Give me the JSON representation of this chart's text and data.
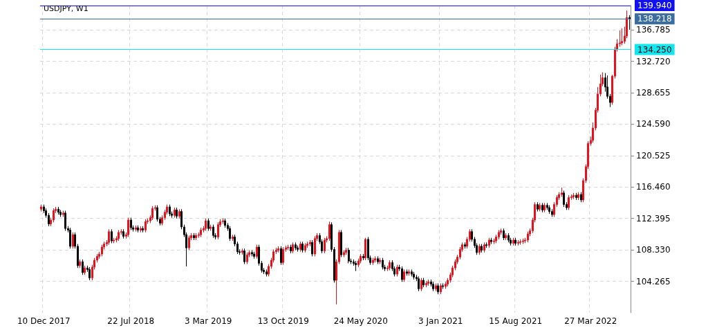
{
  "chart_data": {
    "type": "candlestick",
    "title": "USDJPY, W1",
    "categories": [
      null,
      "10 Dec 2017",
      null,
      null,
      null,
      null,
      null,
      null,
      null,
      null,
      null,
      null,
      null,
      null,
      null,
      null,
      null,
      null,
      null,
      null,
      null,
      null,
      null,
      null,
      null,
      null,
      null,
      null,
      null,
      null,
      null,
      null,
      null,
      null,
      null,
      null,
      null,
      "22 Jul 2018",
      null,
      null,
      null,
      null,
      null,
      null,
      null,
      null,
      null,
      null,
      null,
      null,
      null,
      null,
      null,
      null,
      null,
      null,
      null,
      null,
      null,
      null,
      null,
      null,
      null,
      null,
      null,
      null,
      null,
      null,
      null,
      "3 Mar 2019",
      null,
      null,
      null,
      null,
      null,
      null,
      null,
      null,
      null,
      null,
      null,
      null,
      null,
      null,
      null,
      null,
      null,
      null,
      null,
      null,
      null,
      null,
      null,
      null,
      null,
      null,
      null,
      null,
      null,
      null,
      "13 Oct 2019",
      null,
      null,
      null,
      null,
      null,
      null,
      null,
      null,
      null,
      null,
      null,
      null,
      null,
      null,
      null,
      null,
      null,
      null,
      null,
      null,
      null,
      null,
      null,
      null,
      null,
      null,
      null,
      null,
      null,
      null,
      null,
      "24 May 2020",
      null,
      null,
      null,
      null,
      null,
      null,
      null,
      null,
      null,
      null,
      null,
      null,
      null,
      null,
      null,
      null,
      null,
      null,
      null,
      null,
      null,
      null,
      null,
      null,
      null,
      null,
      null,
      null,
      null,
      null,
      null,
      null,
      "3 Jan 2021",
      null,
      null,
      null,
      null,
      null,
      null,
      null,
      null,
      null,
      null,
      null,
      null,
      null,
      null,
      null,
      null,
      null,
      null,
      null,
      null,
      null,
      null,
      null,
      null,
      null,
      null,
      null,
      null,
      null,
      null,
      "15 Aug 2021",
      null,
      null,
      null,
      null,
      null,
      null,
      null,
      null,
      null,
      null,
      null,
      null,
      null,
      null,
      null,
      null,
      null,
      null,
      null,
      null,
      null,
      null,
      null,
      null,
      null,
      null,
      null,
      null,
      null,
      null,
      "27 Mar 2022",
      null,
      null,
      null,
      null,
      null,
      null,
      null,
      null,
      null,
      null,
      null,
      null,
      null,
      null,
      null,
      null
    ],
    "ohlc": [
      [
        113.6,
        114.2,
        113.3,
        113.9
      ],
      [
        113.9,
        114.2,
        113.1,
        113.4
      ],
      [
        113.4,
        113.7,
        112.5,
        112.8
      ],
      [
        112.8,
        113.1,
        111.4,
        111.7
      ],
      [
        111.7,
        112.5,
        111.4,
        112.2
      ],
      [
        112.2,
        113.7,
        111.9,
        113.4
      ],
      [
        113.4,
        113.9,
        113.1,
        113.6
      ],
      [
        113.6,
        113.9,
        112.9,
        113.2
      ],
      [
        113.2,
        113.5,
        112.6,
        112.9
      ],
      [
        112.9,
        113.4,
        112.6,
        113.1
      ],
      [
        113.1,
        113.4,
        110.8,
        111.1
      ],
      [
        111.1,
        111.4,
        110.6,
        110.9
      ],
      [
        110.9,
        111.2,
        108.5,
        108.8
      ],
      [
        108.8,
        110.6,
        108.5,
        110.3
      ],
      [
        110.3,
        110.6,
        108.5,
        108.8
      ],
      [
        108.8,
        109.1,
        106.0,
        106.3
      ],
      [
        106.3,
        107.1,
        106.0,
        106.8
      ],
      [
        106.8,
        107.1,
        105.1,
        105.4
      ],
      [
        105.4,
        106.3,
        105.1,
        106.0
      ],
      [
        106.0,
        106.3,
        105.5,
        105.8
      ],
      [
        105.8,
        106.1,
        104.4,
        104.7
      ],
      [
        104.7,
        106.4,
        104.4,
        106.1
      ],
      [
        106.1,
        107.3,
        105.8,
        107.0
      ],
      [
        107.0,
        107.8,
        106.7,
        107.5
      ],
      [
        107.5,
        108.1,
        107.2,
        107.8
      ],
      [
        107.8,
        109.0,
        107.5,
        108.7
      ],
      [
        108.7,
        109.4,
        108.4,
        109.1
      ],
      [
        109.1,
        109.6,
        108.8,
        109.3
      ],
      [
        109.3,
        111.0,
        109.0,
        110.7
      ],
      [
        110.7,
        111.0,
        109.2,
        109.5
      ],
      [
        109.5,
        109.9,
        109.2,
        109.6
      ],
      [
        109.6,
        110.1,
        109.3,
        109.8
      ],
      [
        109.8,
        110.9,
        109.5,
        110.6
      ],
      [
        110.6,
        111.0,
        110.3,
        110.7
      ],
      [
        110.7,
        111.0,
        109.8,
        110.1
      ],
      [
        110.1,
        110.6,
        109.8,
        110.3
      ],
      [
        110.3,
        112.5,
        110.0,
        112.2
      ],
      [
        112.2,
        112.5,
        110.9,
        111.2
      ],
      [
        111.2,
        111.5,
        110.7,
        111.0
      ],
      [
        111.0,
        111.5,
        110.7,
        111.2
      ],
      [
        111.2,
        111.5,
        110.6,
        110.9
      ],
      [
        110.9,
        111.4,
        110.6,
        111.1
      ],
      [
        111.1,
        111.4,
        110.6,
        110.9
      ],
      [
        110.9,
        112.3,
        110.6,
        112.0
      ],
      [
        112.0,
        112.4,
        111.7,
        112.1
      ],
      [
        112.1,
        112.8,
        111.8,
        112.5
      ],
      [
        112.5,
        114.0,
        112.2,
        113.7
      ],
      [
        113.7,
        114.1,
        113.4,
        113.8
      ],
      [
        113.8,
        114.1,
        112.0,
        112.3
      ],
      [
        112.3,
        112.6,
        111.5,
        111.8
      ],
      [
        111.8,
        112.8,
        111.5,
        112.5
      ],
      [
        112.5,
        113.5,
        112.2,
        113.2
      ],
      [
        113.2,
        114.2,
        112.9,
        113.9
      ],
      [
        113.9,
        114.2,
        112.7,
        113.0
      ],
      [
        113.0,
        113.3,
        112.5,
        112.8
      ],
      [
        112.8,
        113.8,
        112.5,
        113.5
      ],
      [
        113.5,
        113.8,
        112.4,
        112.7
      ],
      [
        112.7,
        113.6,
        112.4,
        113.3
      ],
      [
        113.3,
        113.6,
        111.0,
        111.3
      ],
      [
        111.3,
        111.6,
        110.0,
        110.3
      ],
      [
        110.3,
        110.6,
        106.2,
        108.6
      ],
      [
        108.6,
        110.2,
        108.3,
        109.9
      ],
      [
        109.9,
        110.5,
        109.6,
        110.2
      ],
      [
        110.2,
        110.5,
        109.6,
        109.9
      ],
      [
        109.9,
        110.5,
        109.6,
        110.2
      ],
      [
        110.2,
        110.6,
        109.9,
        110.3
      ],
      [
        110.3,
        111.2,
        110.0,
        110.9
      ],
      [
        110.9,
        111.4,
        110.6,
        111.1
      ],
      [
        111.1,
        112.4,
        110.8,
        112.1
      ],
      [
        112.1,
        112.4,
        110.8,
        111.1
      ],
      [
        111.1,
        111.6,
        110.8,
        111.3
      ],
      [
        111.3,
        111.6,
        109.9,
        110.2
      ],
      [
        110.2,
        110.5,
        109.7,
        110.0
      ],
      [
        110.0,
        111.9,
        109.7,
        111.6
      ],
      [
        111.6,
        112.3,
        111.3,
        112.0
      ],
      [
        112.0,
        112.4,
        111.7,
        112.1
      ],
      [
        112.1,
        112.4,
        111.2,
        111.5
      ],
      [
        111.5,
        111.8,
        110.8,
        111.1
      ],
      [
        111.1,
        111.4,
        109.5,
        109.8
      ],
      [
        109.8,
        110.3,
        109.5,
        110.0
      ],
      [
        110.0,
        110.3,
        108.8,
        109.1
      ],
      [
        109.1,
        109.4,
        107.8,
        108.1
      ],
      [
        108.1,
        108.4,
        107.7,
        108.0
      ],
      [
        108.0,
        108.5,
        107.7,
        108.2
      ],
      [
        108.2,
        108.5,
        106.5,
        106.8
      ],
      [
        106.8,
        108.0,
        106.5,
        107.7
      ],
      [
        107.7,
        108.3,
        107.4,
        108.0
      ],
      [
        108.0,
        108.3,
        107.5,
        107.8
      ],
      [
        107.8,
        108.1,
        107.2,
        107.5
      ],
      [
        107.5,
        109.0,
        107.2,
        108.7
      ],
      [
        108.7,
        109.0,
        106.3,
        106.6
      ],
      [
        106.6,
        106.9,
        105.4,
        105.7
      ],
      [
        105.7,
        106.0,
        105.2,
        105.5
      ],
      [
        105.5,
        105.8,
        104.9,
        105.2
      ],
      [
        105.2,
        106.5,
        104.9,
        106.2
      ],
      [
        106.2,
        107.3,
        105.9,
        107.0
      ],
      [
        107.0,
        108.4,
        106.7,
        108.1
      ],
      [
        108.1,
        108.6,
        107.8,
        108.3
      ],
      [
        108.3,
        108.8,
        108.0,
        108.5
      ],
      [
        108.5,
        108.8,
        106.4,
        106.7
      ],
      [
        106.7,
        108.7,
        106.4,
        108.4
      ],
      [
        108.4,
        108.9,
        108.1,
        108.6
      ],
      [
        108.6,
        109.0,
        108.3,
        108.7
      ],
      [
        108.7,
        109.0,
        107.9,
        108.2
      ],
      [
        108.2,
        109.3,
        107.9,
        109.0
      ],
      [
        109.0,
        109.3,
        108.3,
        108.6
      ],
      [
        108.6,
        108.9,
        108.1,
        108.4
      ],
      [
        108.4,
        109.4,
        108.1,
        109.1
      ],
      [
        109.1,
        109.4,
        108.0,
        108.3
      ],
      [
        108.3,
        109.2,
        108.0,
        108.9
      ],
      [
        108.9,
        109.4,
        108.6,
        109.1
      ],
      [
        109.1,
        109.6,
        108.8,
        109.3
      ],
      [
        109.3,
        109.6,
        107.5,
        107.8
      ],
      [
        107.8,
        110.1,
        107.5,
        109.8
      ],
      [
        109.8,
        110.5,
        109.5,
        110.2
      ],
      [
        110.2,
        110.5,
        109.1,
        109.4
      ],
      [
        109.4,
        109.7,
        107.9,
        108.2
      ],
      [
        108.2,
        109.9,
        107.9,
        109.6
      ],
      [
        109.6,
        110.1,
        109.3,
        109.8
      ],
      [
        109.8,
        112.0,
        109.5,
        111.6
      ],
      [
        111.6,
        111.9,
        108.1,
        108.4
      ],
      [
        108.4,
        108.7,
        104.1,
        104.4
      ],
      [
        104.4,
        107.1,
        101.3,
        106.8
      ],
      [
        106.8,
        110.9,
        106.5,
        110.6
      ],
      [
        110.6,
        110.9,
        107.4,
        107.7
      ],
      [
        107.7,
        108.3,
        107.4,
        108.0
      ],
      [
        108.0,
        108.6,
        107.7,
        108.3
      ],
      [
        108.3,
        108.6,
        106.6,
        106.9
      ],
      [
        106.9,
        107.2,
        106.5,
        106.8
      ],
      [
        106.8,
        107.1,
        106.3,
        106.6
      ],
      [
        106.6,
        106.9,
        105.6,
        106.4
      ],
      [
        106.4,
        107.2,
        106.1,
        106.9
      ],
      [
        106.9,
        107.8,
        106.6,
        107.5
      ],
      [
        107.5,
        107.8,
        107.0,
        107.3
      ],
      [
        107.3,
        109.9,
        107.0,
        109.7
      ],
      [
        109.7,
        110.0,
        107.0,
        107.3
      ],
      [
        107.3,
        107.6,
        106.4,
        106.7
      ],
      [
        106.7,
        107.3,
        106.4,
        107.0
      ],
      [
        107.0,
        107.5,
        106.7,
        107.2
      ],
      [
        107.2,
        107.5,
        106.5,
        106.8
      ],
      [
        106.8,
        107.3,
        106.5,
        107.0
      ],
      [
        107.0,
        107.3,
        105.8,
        106.1
      ],
      [
        106.1,
        106.4,
        105.6,
        105.9
      ],
      [
        105.9,
        106.3,
        105.6,
        106.0
      ],
      [
        106.0,
        107.0,
        105.7,
        106.7
      ],
      [
        106.7,
        107.0,
        105.6,
        105.9
      ],
      [
        105.9,
        106.2,
        104.9,
        105.2
      ],
      [
        105.2,
        106.4,
        104.9,
        106.1
      ],
      [
        106.1,
        106.4,
        105.6,
        105.9
      ],
      [
        105.9,
        106.2,
        104.2,
        104.5
      ],
      [
        104.5,
        105.8,
        104.2,
        105.5
      ],
      [
        105.5,
        105.8,
        105.0,
        105.3
      ],
      [
        105.3,
        105.8,
        105.0,
        105.5
      ],
      [
        105.5,
        105.8,
        104.9,
        105.2
      ],
      [
        105.2,
        105.5,
        104.5,
        104.8
      ],
      [
        104.8,
        105.1,
        104.3,
        104.6
      ],
      [
        104.6,
        104.9,
        103.0,
        103.3
      ],
      [
        103.3,
        104.7,
        103.0,
        104.4
      ],
      [
        104.4,
        104.7,
        103.5,
        103.8
      ],
      [
        103.8,
        104.3,
        103.5,
        104.0
      ],
      [
        104.0,
        104.5,
        103.7,
        104.2
      ],
      [
        104.2,
        104.5,
        103.6,
        103.9
      ],
      [
        103.9,
        104.2,
        103.0,
        103.3
      ],
      [
        103.3,
        104.0,
        103.0,
        103.7
      ],
      [
        103.7,
        104.0,
        102.6,
        102.9
      ],
      [
        102.9,
        104.0,
        102.6,
        103.7
      ],
      [
        103.7,
        104.0,
        103.3,
        103.6
      ],
      [
        103.6,
        104.2,
        103.3,
        103.9
      ],
      [
        103.9,
        104.7,
        103.6,
        104.4
      ],
      [
        104.4,
        105.4,
        104.1,
        105.1
      ],
      [
        105.1,
        106.3,
        104.8,
        106.0
      ],
      [
        106.0,
        107.1,
        105.7,
        106.8
      ],
      [
        106.8,
        107.7,
        106.5,
        107.4
      ],
      [
        107.4,
        108.7,
        107.1,
        108.4
      ],
      [
        108.4,
        109.3,
        108.1,
        109.0
      ],
      [
        109.0,
        109.3,
        108.5,
        108.8
      ],
      [
        108.8,
        110.0,
        108.5,
        109.7
      ],
      [
        109.7,
        111.0,
        109.4,
        110.7
      ],
      [
        110.7,
        111.0,
        109.4,
        109.7
      ],
      [
        109.7,
        110.0,
        108.6,
        108.9
      ],
      [
        108.9,
        109.2,
        107.7,
        108.0
      ],
      [
        108.0,
        109.1,
        107.7,
        108.8
      ],
      [
        108.8,
        109.1,
        108.0,
        108.3
      ],
      [
        108.3,
        109.3,
        108.0,
        109.0
      ],
      [
        109.0,
        109.3,
        108.6,
        108.9
      ],
      [
        108.9,
        109.9,
        108.6,
        109.6
      ],
      [
        109.6,
        109.9,
        109.1,
        109.4
      ],
      [
        109.4,
        109.8,
        109.1,
        109.5
      ],
      [
        109.5,
        110.3,
        109.2,
        110.0
      ],
      [
        110.0,
        110.9,
        109.7,
        110.6
      ],
      [
        110.6,
        111.1,
        110.3,
        110.8
      ],
      [
        110.8,
        111.1,
        109.6,
        109.9
      ],
      [
        109.9,
        110.5,
        109.6,
        110.2
      ],
      [
        110.2,
        110.5,
        109.3,
        109.6
      ],
      [
        109.6,
        109.9,
        108.9,
        109.2
      ],
      [
        109.2,
        109.9,
        108.9,
        109.6
      ],
      [
        109.6,
        109.9,
        108.9,
        109.2
      ],
      [
        109.2,
        109.6,
        108.9,
        109.3
      ],
      [
        109.3,
        109.7,
        109.0,
        109.4
      ],
      [
        109.4,
        109.8,
        109.1,
        109.5
      ],
      [
        109.5,
        109.9,
        109.2,
        109.6
      ],
      [
        109.6,
        110.7,
        109.3,
        110.4
      ],
      [
        110.4,
        111.1,
        110.1,
        110.8
      ],
      [
        110.8,
        112.5,
        110.5,
        112.2
      ],
      [
        112.2,
        114.5,
        111.9,
        114.2
      ],
      [
        114.2,
        114.5,
        113.3,
        113.6
      ],
      [
        113.6,
        114.4,
        113.3,
        114.1
      ],
      [
        114.1,
        114.4,
        113.2,
        113.5
      ],
      [
        113.5,
        114.4,
        113.2,
        114.1
      ],
      [
        114.1,
        114.4,
        113.5,
        113.8
      ],
      [
        113.8,
        114.1,
        113.0,
        113.3
      ],
      [
        113.3,
        113.6,
        112.6,
        112.9
      ],
      [
        112.9,
        114.5,
        112.6,
        114.2
      ],
      [
        114.2,
        115.4,
        113.9,
        115.1
      ],
      [
        115.1,
        115.8,
        114.8,
        115.5
      ],
      [
        115.5,
        116.4,
        115.2,
        115.7
      ],
      [
        115.7,
        116.0,
        113.9,
        114.2
      ],
      [
        114.2,
        114.5,
        113.5,
        113.8
      ],
      [
        113.8,
        115.4,
        113.5,
        115.1
      ],
      [
        115.1,
        115.5,
        114.8,
        115.2
      ],
      [
        115.2,
        115.7,
        114.9,
        115.4
      ],
      [
        115.4,
        115.7,
        114.8,
        115.1
      ],
      [
        115.1,
        115.8,
        114.8,
        115.5
      ],
      [
        115.5,
        115.8,
        114.5,
        114.8
      ],
      [
        114.8,
        117.6,
        114.5,
        117.3
      ],
      [
        117.3,
        119.4,
        117.0,
        119.1
      ],
      [
        119.1,
        122.4,
        118.8,
        122.1
      ],
      [
        122.1,
        123.0,
        121.8,
        122.5
      ],
      [
        122.5,
        124.8,
        122.2,
        124.1
      ],
      [
        124.1,
        126.7,
        123.8,
        126.4
      ],
      [
        126.4,
        129.4,
        126.1,
        128.5
      ],
      [
        128.5,
        131.0,
        128.2,
        129.8
      ],
      [
        129.8,
        131.3,
        129.5,
        130.6
      ],
      [
        130.6,
        131.2,
        128.8,
        129.4
      ],
      [
        129.4,
        130.9,
        127.9,
        128.2
      ],
      [
        128.2,
        128.5,
        126.8,
        127.4
      ],
      [
        127.4,
        131.0,
        127.1,
        130.8
      ],
      [
        130.8,
        134.6,
        130.5,
        134.3
      ],
      [
        134.3,
        135.6,
        134.0,
        135.0
      ],
      [
        135.0,
        136.7,
        134.6,
        135.1
      ],
      [
        135.1,
        137.0,
        134.8,
        135.3
      ],
      [
        135.3,
        137.2,
        135.0,
        136.0
      ],
      [
        136.0,
        139.3,
        135.7,
        138.4
      ],
      [
        138.4,
        138.7,
        136.8,
        138.2
      ]
    ],
    "colors": [
      "#e8101a",
      "#000000",
      "#000000",
      "#000000",
      "#e8101a",
      "#e8101a",
      "#e8101a",
      "#000000",
      "#000000",
      "#e8101a",
      "#000000",
      "#000000",
      "#000000",
      "#e8101a",
      "#000000",
      "#000000",
      "#e8101a",
      "#000000",
      "#e8101a",
      "#000000",
      "#000000",
      "#e8101a",
      "#e8101a",
      "#e8101a",
      "#e8101a",
      "#e8101a",
      "#e8101a",
      "#e8101a",
      "#e8101a",
      "#000000",
      "#e8101a",
      "#e8101a",
      "#e8101a",
      "#e8101a",
      "#000000",
      "#e8101a",
      "#e8101a",
      "#000000",
      "#000000",
      "#e8101a",
      "#000000",
      "#e8101a",
      "#000000",
      "#e8101a",
      "#e8101a",
      "#e8101a",
      "#e8101a",
      "#e8101a",
      "#000000",
      "#000000",
      "#e8101a",
      "#e8101a",
      "#e8101a",
      "#000000",
      "#000000",
      "#e8101a",
      "#000000",
      "#e8101a",
      "#000000",
      "#000000",
      "#000000",
      "#e8101a",
      "#e8101a",
      "#000000",
      "#e8101a",
      "#e8101a",
      "#e8101a",
      "#e8101a",
      "#e8101a",
      "#000000",
      "#e8101a",
      "#000000",
      "#000000",
      "#e8101a",
      "#e8101a",
      "#e8101a",
      "#000000",
      "#000000",
      "#000000",
      "#e8101a",
      "#000000",
      "#000000",
      "#000000",
      "#e8101a",
      "#000000",
      "#e8101a",
      "#e8101a",
      "#000000",
      "#000000",
      "#e8101a",
      "#000000",
      "#000000",
      "#000000",
      "#000000",
      "#e8101a",
      "#e8101a",
      "#e8101a",
      "#e8101a",
      "#e8101a",
      "#000000",
      "#e8101a",
      "#e8101a",
      "#e8101a",
      "#000000",
      "#e8101a",
      "#000000",
      "#000000",
      "#e8101a",
      "#000000",
      "#e8101a",
      "#e8101a",
      "#e8101a",
      "#000000",
      "#e8101a",
      "#e8101a",
      "#000000",
      "#000000",
      "#e8101a",
      "#e8101a",
      "#e8101a",
      "#000000",
      "#000000",
      "#e8101a",
      "#e8101a",
      "#000000",
      "#e8101a",
      "#e8101a",
      "#000000",
      "#000000",
      "#000000",
      "#000000",
      "#e8101a",
      "#e8101a",
      "#000000",
      "#e8101a",
      "#000000",
      "#000000",
      "#e8101a",
      "#e8101a",
      "#000000",
      "#e8101a",
      "#000000",
      "#000000",
      "#e8101a",
      "#e8101a",
      "#000000",
      "#000000",
      "#e8101a",
      "#000000",
      "#000000",
      "#e8101a",
      "#000000",
      "#e8101a",
      "#000000",
      "#000000",
      "#000000",
      "#000000",
      "#e8101a",
      "#000000",
      "#e8101a",
      "#e8101a",
      "#000000",
      "#000000",
      "#e8101a",
      "#000000",
      "#e8101a",
      "#000000",
      "#e8101a",
      "#e8101a",
      "#e8101a",
      "#e8101a",
      "#e8101a",
      "#e8101a",
      "#e8101a",
      "#e8101a",
      "#000000",
      "#e8101a",
      "#e8101a",
      "#000000",
      "#000000",
      "#000000",
      "#e8101a",
      "#000000",
      "#e8101a",
      "#000000",
      "#e8101a",
      "#000000",
      "#e8101a",
      "#e8101a",
      "#e8101a",
      "#e8101a",
      "#000000",
      "#e8101a",
      "#000000",
      "#000000",
      "#e8101a",
      "#000000",
      "#e8101a",
      "#e8101a",
      "#e8101a",
      "#e8101a",
      "#e8101a",
      "#e8101a",
      "#e8101a",
      "#e8101a",
      "#000000",
      "#e8101a",
      "#000000",
      "#e8101a",
      "#000000",
      "#000000",
      "#000000",
      "#e8101a",
      "#e8101a",
      "#e8101a",
      "#e8101a",
      "#000000",
      "#000000",
      "#e8101a",
      "#e8101a",
      "#e8101a",
      "#000000",
      "#e8101a",
      "#000000",
      "#e8101a",
      "#e8101a",
      "#e8101a",
      "#e8101a",
      "#e8101a",
      "#e8101a",
      "#e8101a",
      "#e8101a",
      "#e8101a",
      "#000000",
      "#000000",
      "#000000",
      "#e8101a",
      "#e8101a",
      "#e8101a",
      "#e8101a",
      "#e8101a",
      "#e8101a",
      "#e8101a",
      "#000000"
    ],
    "ylim": [
      100.2,
      139.94
    ],
    "yticks": [
      104.265,
      {
        "value": 108.33,
        "label": "108.330"
      },
      112.395,
      {
        "value": 116.46,
        "label": "116.460"
      },
      120.525,
      {
        "value": 124.59,
        "label": "124.590"
      },
      128.655,
      {
        "value": 132.72,
        "label": "132.720"
      },
      136.785
    ],
    "ref_lines": [
      {
        "axis": "y",
        "value": 139.94,
        "label": "139.940",
        "color": "#1010f0"
      },
      {
        "axis": "y",
        "value": 138.218,
        "label": "138.218",
        "color": "#3b6e9e"
      },
      {
        "axis": "y",
        "value": 134.25,
        "label": "134.250",
        "color": "#12e6f0"
      }
    ],
    "grid": true
  }
}
